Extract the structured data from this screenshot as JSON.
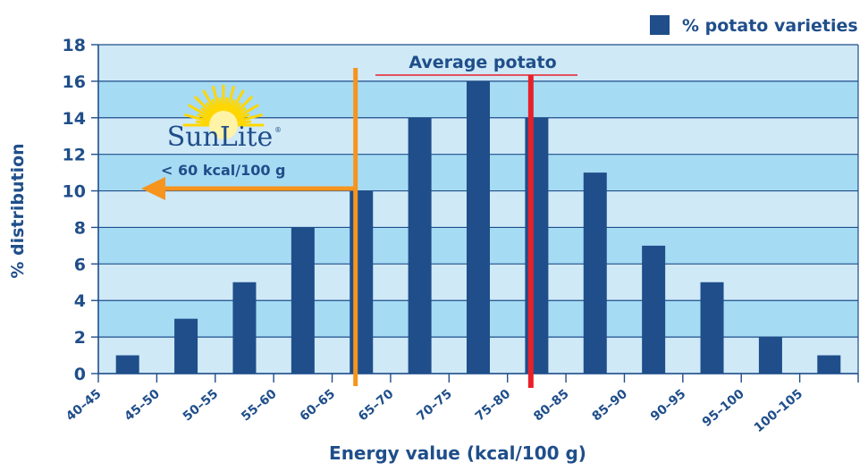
{
  "chart_data": {
    "type": "bar",
    "title": "",
    "xlabel": "Energy value (kcal/100 g)",
    "ylabel": "% distribution",
    "ylim": [
      0,
      18
    ],
    "yticks": [
      0,
      2,
      4,
      6,
      8,
      10,
      12,
      14,
      16,
      18
    ],
    "x_ticks": [
      "40–45",
      "45–50",
      "50–55",
      "55–60",
      "60–65",
      "65–70",
      "70–75",
      "75–80",
      "80–85",
      "85–90",
      "90–95",
      "95–100",
      "100–105"
    ],
    "bar_values": [
      1,
      3,
      5,
      8,
      10,
      14,
      16,
      14,
      11,
      7,
      5,
      2,
      1
    ],
    "series": [
      {
        "name": "% potato varieties",
        "values": [
          1,
          3,
          5,
          8,
          10,
          14,
          16,
          14,
          11,
          7,
          5,
          2,
          1
        ]
      }
    ],
    "legend_position": "top-right",
    "grid": "alternating horizontal bands",
    "annotations": {
      "average_label": "Average potato",
      "average_x": 77,
      "sunlite_logo": "SunLite",
      "sunlite_note": "< 60 kcal/100 g",
      "sunlite_x": 62
    },
    "colors": {
      "bar": "#1f4e8a",
      "band_light": "#cfe9f7",
      "band_dark": "#a6dbf4",
      "average_line": "#e8202a",
      "sunlite_line": "#f7941d",
      "text": "#1f4e8a"
    }
  }
}
